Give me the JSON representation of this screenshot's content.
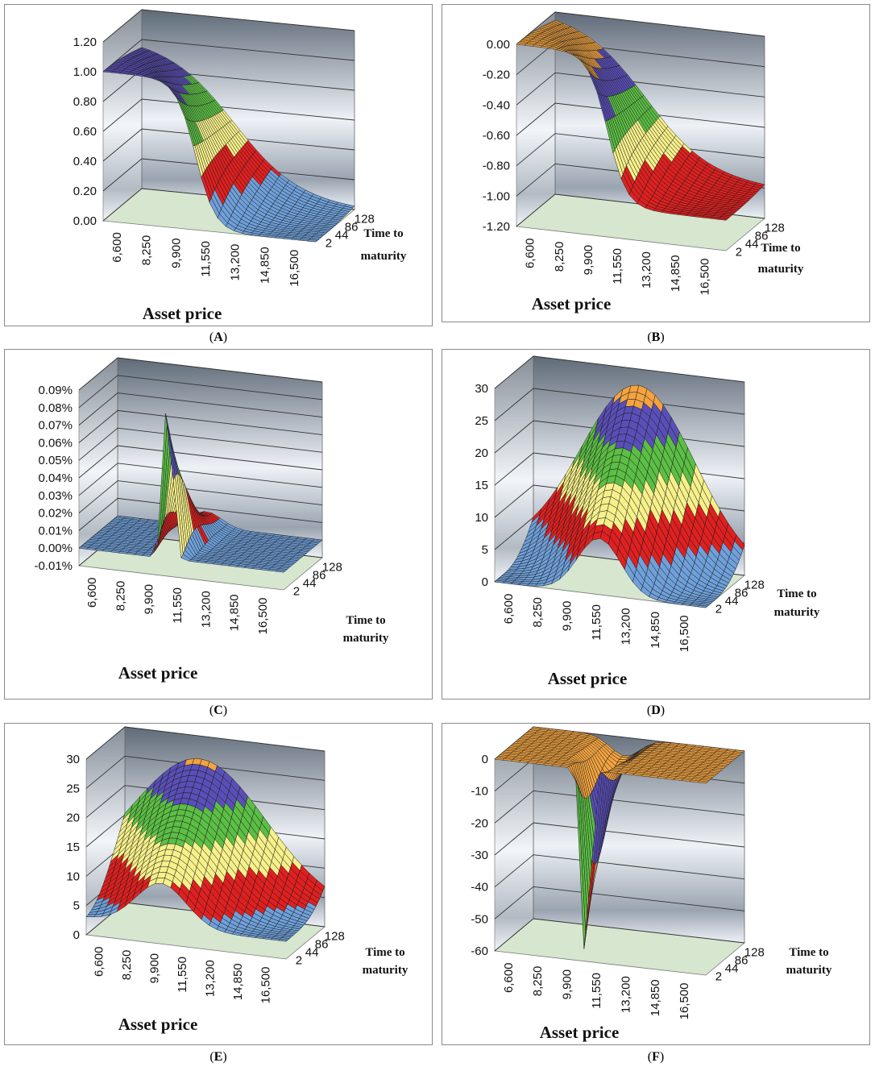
{
  "figure": {
    "panels": [
      {
        "label": "A"
      },
      {
        "label": "B"
      },
      {
        "label": "C"
      },
      {
        "label": "D"
      },
      {
        "label": "E"
      },
      {
        "label": "F"
      }
    ]
  },
  "colors": {
    "surface_bands": [
      "#6fa0da",
      "#e02020",
      "#f6f08a",
      "#5cbf45",
      "#5a4fb8",
      "#f3a440"
    ],
    "floor": "#d6e6cf",
    "mesh": "#1a1a1a",
    "wall_light": "#eef2f7",
    "wall_dark": "#5f6a78"
  },
  "chart_data": [
    {
      "type": "surface3d",
      "panel": "A",
      "xlabel": "Asset price",
      "ylabel": "Time to maturity",
      "x_ticks": [
        "6,600",
        "8,250",
        "9,900",
        "11,550",
        "13,200",
        "14,850",
        "16,500"
      ],
      "y_ticks": [
        "2",
        "44",
        "86",
        "128"
      ],
      "z_ticks": [
        "0.00",
        "0.20",
        "0.40",
        "0.60",
        "0.80",
        "1.00",
        "1.20"
      ],
      "zlim": [
        0,
        1.2
      ],
      "x_range": [
        6600,
        16500
      ],
      "y_range": [
        2,
        128
      ],
      "shape": "sigmoid_down",
      "center": 10900,
      "width": 650,
      "z_low": 0,
      "z_high": 1.0
    },
    {
      "type": "surface3d",
      "panel": "B",
      "xlabel": "Asset price",
      "ylabel": "Time to maturity",
      "x_ticks": [
        "6,600",
        "8,250",
        "9,900",
        "11,550",
        "13,200",
        "14,850",
        "16,500"
      ],
      "y_ticks": [
        "2",
        "44",
        "86",
        "128"
      ],
      "z_ticks": [
        "0.00",
        "-0.20",
        "-0.40",
        "-0.60",
        "-0.80",
        "-1.00",
        "-1.20"
      ],
      "zlim": [
        -1.2,
        0
      ],
      "x_range": [
        6600,
        16500
      ],
      "y_range": [
        2,
        128
      ],
      "shape": "sigmoid_down",
      "center": 10900,
      "width": 650,
      "z_low": -1.0,
      "z_high": 0
    },
    {
      "type": "surface3d",
      "panel": "C",
      "xlabel": "Asset price",
      "ylabel": "Time to maturity",
      "x_ticks": [
        "6,600",
        "8,250",
        "9,900",
        "11,550",
        "13,200",
        "14,850",
        "16,500"
      ],
      "y_ticks": [
        "2",
        "44",
        "86",
        "128"
      ],
      "z_ticks": [
        "-0.01%",
        "0.00%",
        "0.01%",
        "0.02%",
        "0.03%",
        "0.04%",
        "0.05%",
        "0.06%",
        "0.07%",
        "0.08%",
        "0.09%"
      ],
      "zlim": [
        -0.01,
        0.09
      ],
      "x_range": [
        6600,
        16500
      ],
      "y_range": [
        2,
        128
      ],
      "shape": "spike",
      "center": 10900,
      "width": 450,
      "peak": 0.085,
      "base": 0.0
    },
    {
      "type": "surface3d",
      "panel": "D",
      "xlabel": "Asset price",
      "ylabel": "Time to maturity",
      "x_ticks": [
        "6,600",
        "8,250",
        "9,900",
        "11,550",
        "13,200",
        "14,850",
        "16,500"
      ],
      "y_ticks": [
        "2",
        "44",
        "86",
        "128"
      ],
      "z_ticks": [
        "0",
        "5",
        "10",
        "15",
        "20",
        "25",
        "30"
      ],
      "zlim": [
        0,
        30
      ],
      "x_range": [
        6600,
        16500
      ],
      "y_range": [
        2,
        128
      ],
      "shape": "hump",
      "center": 11500,
      "width": 2600,
      "peak": 25,
      "base": 0
    },
    {
      "type": "surface3d",
      "panel": "E",
      "xlabel": "Asset price",
      "ylabel": "Time to maturity",
      "x_ticks": [
        "6,600",
        "8,250",
        "9,900",
        "11,550",
        "13,200",
        "14,850",
        "16,500"
      ],
      "y_ticks": [
        "2",
        "44",
        "86",
        "128"
      ],
      "z_ticks": [
        "0",
        "5",
        "10",
        "15",
        "20",
        "25",
        "30"
      ],
      "zlim": [
        0,
        30
      ],
      "x_range": [
        6600,
        16500
      ],
      "y_range": [
        2,
        128
      ],
      "shape": "hump",
      "center": 10300,
      "width": 3200,
      "peak": 24,
      "base": 3
    },
    {
      "type": "surface3d",
      "panel": "F",
      "xlabel": "Asset price",
      "ylabel": "Time to maturity",
      "x_ticks": [
        "6,600",
        "8,250",
        "9,900",
        "11,550",
        "13,200",
        "14,850",
        "16,500"
      ],
      "y_ticks": [
        "2",
        "44",
        "86",
        "128"
      ],
      "z_ticks": [
        "0",
        "-10",
        "-20",
        "-30",
        "-40",
        "-50",
        "-60"
      ],
      "zlim": [
        -60,
        0
      ],
      "x_range": [
        6600,
        16500
      ],
      "y_range": [
        2,
        128
      ],
      "shape": "spike",
      "center": 10900,
      "width": 420,
      "peak": -59,
      "base": 0,
      "z_tick_color": "#d42020"
    }
  ]
}
